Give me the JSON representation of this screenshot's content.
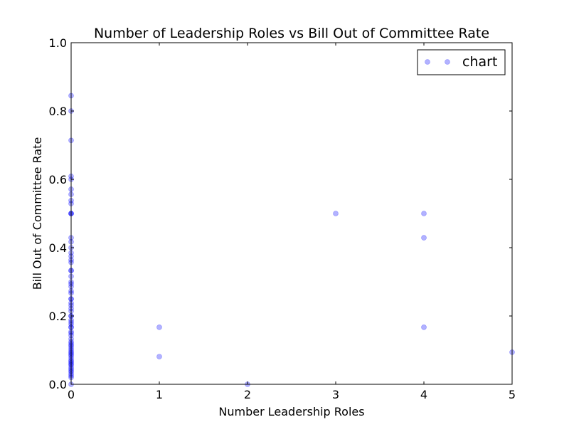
{
  "chart_data": {
    "type": "scatter",
    "title": "Number of Leadership Roles vs Bill Out of Committee Rate",
    "xlabel": "Number Leadership Roles",
    "ylabel": "Bill Out of Committee Rate",
    "xlim": [
      0,
      5
    ],
    "ylim": [
      0,
      1.0
    ],
    "xticks": [
      "0",
      "1",
      "2",
      "3",
      "4",
      "5"
    ],
    "yticks": [
      "0.0",
      "0.2",
      "0.4",
      "0.6",
      "0.8",
      "1.0"
    ],
    "grid": false,
    "legend_position": "top-right",
    "marker_color": "#0000ff",
    "series": [
      {
        "name": "chart",
        "x": [
          0,
          0,
          0,
          0,
          0,
          0,
          0,
          0,
          0,
          0,
          0,
          0,
          0,
          0,
          0,
          0,
          0,
          0,
          0,
          0,
          0,
          0,
          0,
          0,
          0,
          0,
          0,
          0,
          0,
          0,
          0,
          0,
          0,
          0,
          0,
          0,
          0,
          0,
          0,
          0,
          0,
          0,
          0,
          0,
          0,
          0,
          0,
          0,
          0,
          0,
          0,
          0,
          0,
          0,
          0,
          0,
          0,
          0,
          0,
          0,
          0,
          0,
          0,
          0,
          0,
          0,
          0,
          0,
          1,
          1,
          2,
          3,
          4,
          4,
          4,
          5
        ],
        "y": [
          0.845,
          0.8,
          0.714,
          0.609,
          0.6,
          0.571,
          0.556,
          0.538,
          0.529,
          0.5,
          0.5,
          0.5,
          0.429,
          0.417,
          0.4,
          0.385,
          0.375,
          0.364,
          0.357,
          0.333,
          0.333,
          0.316,
          0.3,
          0.294,
          0.286,
          0.273,
          0.267,
          0.25,
          0.25,
          0.238,
          0.231,
          0.222,
          0.214,
          0.2,
          0.2,
          0.188,
          0.182,
          0.176,
          0.167,
          0.167,
          0.154,
          0.15,
          0.143,
          0.133,
          0.125,
          0.12,
          0.115,
          0.111,
          0.105,
          0.1,
          0.095,
          0.091,
          0.087,
          0.083,
          0.077,
          0.071,
          0.067,
          0.063,
          0.059,
          0.056,
          0.05,
          0.045,
          0.04,
          0.036,
          0.03,
          0.025,
          0.02,
          0.0,
          0.167,
          0.081,
          0.0,
          0.5,
          0.5,
          0.429,
          0.167,
          0.094
        ]
      }
    ]
  }
}
